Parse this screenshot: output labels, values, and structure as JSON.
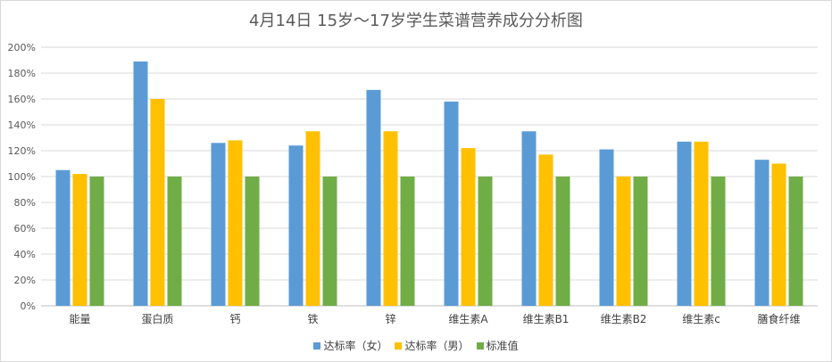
{
  "chart_data": {
    "type": "bar",
    "title": "4月14日 15岁～17岁学生菜谱营养成分分析图",
    "categories": [
      "能量",
      "蛋白质",
      "钙",
      "铁",
      "锌",
      "维生素A",
      "维生素B1",
      "维生素B2",
      "维生素c",
      "膳食纤维"
    ],
    "series": [
      {
        "name": "达标率（女）",
        "color": "#5b9bd5",
        "values": [
          105,
          189,
          126,
          124,
          167,
          158,
          135,
          121,
          127,
          113
        ]
      },
      {
        "name": "达标率（男）",
        "color": "#ffc000",
        "values": [
          102,
          160,
          128,
          135,
          135,
          122,
          117,
          100,
          127,
          110
        ]
      },
      {
        "name": "标准值",
        "color": "#70ad47",
        "values": [
          100,
          100,
          100,
          100,
          100,
          100,
          100,
          100,
          100,
          100
        ]
      }
    ],
    "ylim": [
      0,
      200
    ],
    "yticks": [
      "0%",
      "20%",
      "40%",
      "60%",
      "80%",
      "100%",
      "120%",
      "140%",
      "160%",
      "180%",
      "200%"
    ],
    "grid": true,
    "legend_position": "bottom"
  }
}
